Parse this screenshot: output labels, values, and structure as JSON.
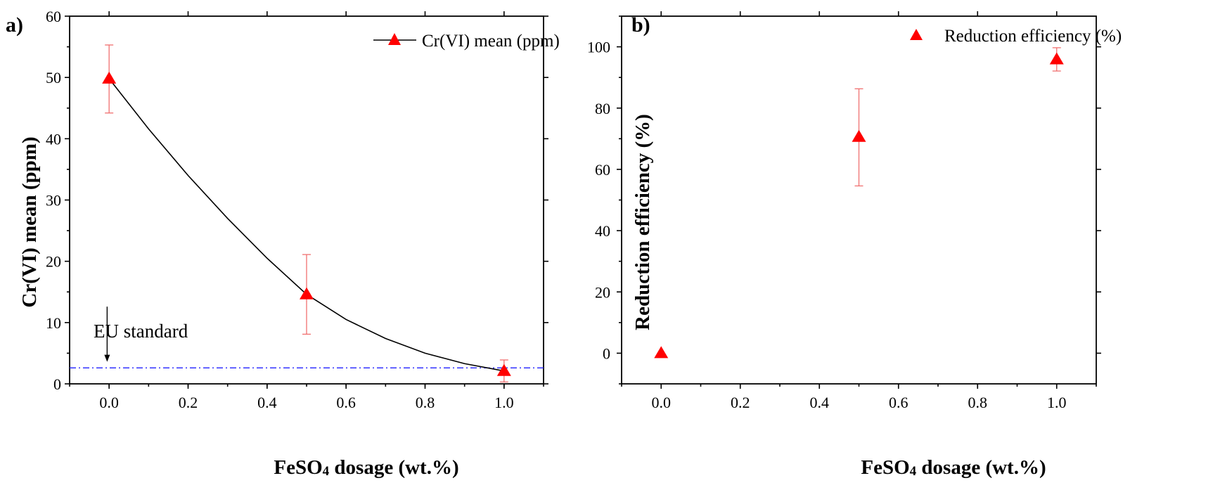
{
  "chart_data": [
    {
      "panel": "a)",
      "type": "line",
      "xlabel_main": "FeSO",
      "xlabel_sub": "4",
      "xlabel_rest": " dosage (wt.%)",
      "ylabel": "Cr(VI) mean (ppm)",
      "xlim": [
        -0.1,
        1.1
      ],
      "ylim": [
        0,
        60
      ],
      "xticks": [
        "0.0",
        "0.2",
        "0.4",
        "0.6",
        "0.8",
        "1.0"
      ],
      "yticks": [
        "0",
        "10",
        "20",
        "30",
        "40",
        "50",
        "60"
      ],
      "series": [
        {
          "name": "Cr(VI) mean (ppm)",
          "color": "#ff0000",
          "line_color": "#000000",
          "marker": "triangle",
          "x": [
            0.0,
            0.5,
            1.0
          ],
          "y": [
            49.8,
            14.6,
            2.1
          ],
          "err_low": [
            44.2,
            8.1,
            0.3
          ],
          "err_high": [
            55.3,
            21.1,
            3.9
          ]
        }
      ],
      "curve": {
        "x": [
          0.0,
          0.1,
          0.2,
          0.3,
          0.4,
          0.5,
          0.6,
          0.7,
          0.8,
          0.9,
          1.0
        ],
        "y": [
          49.8,
          41.6,
          34.0,
          27.0,
          20.5,
          14.6,
          10.5,
          7.4,
          5.0,
          3.3,
          2.1
        ]
      },
      "reference_line": {
        "y": 2.6,
        "color": "#2222ff"
      },
      "annotation": {
        "text": "EU standard",
        "arrow_x": -0.005,
        "arrow_from_y": 12.6,
        "arrow_to_y": 3.6
      },
      "legend": "top-right"
    },
    {
      "panel": "b)",
      "type": "scatter",
      "xlabel_main": "FeSO",
      "xlabel_sub": "4",
      "xlabel_rest": " dosage (wt.%)",
      "ylabel": "Reduction efficiency (%)",
      "xlim": [
        -0.1,
        1.1
      ],
      "ylim": [
        -10,
        110
      ],
      "xticks": [
        "0.0",
        "0.2",
        "0.4",
        "0.6",
        "0.8",
        "1.0"
      ],
      "yticks": [
        "0",
        "20",
        "40",
        "60",
        "80",
        "100"
      ],
      "series": [
        {
          "name": "Reduction efficiency (%)",
          "color": "#ff0000",
          "marker": "triangle",
          "x": [
            0.0,
            0.5,
            1.0
          ],
          "y": [
            0.0,
            70.6,
            95.9
          ],
          "err_low": [
            null,
            54.6,
            92.1
          ],
          "err_high": [
            null,
            86.3,
            99.7
          ]
        }
      ],
      "legend": "top-right"
    }
  ]
}
